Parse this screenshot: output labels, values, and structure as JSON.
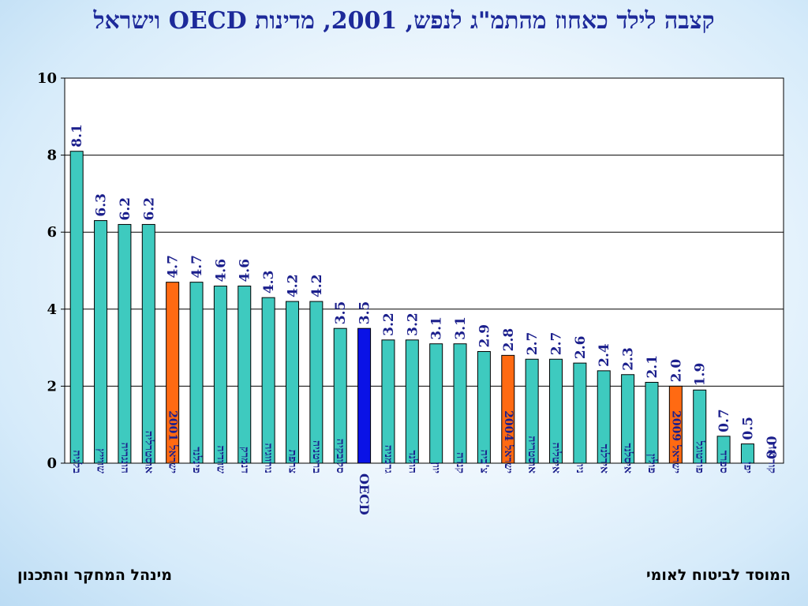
{
  "title": "קצבה לילד כאחוז מהתמ\"ג לנפש, 2001, מדינות OECD וישראל",
  "footer": {
    "left": "מינהל המחקר והתכנון",
    "right": "המוסד לביטוח לאומי"
  },
  "colors": {
    "default_bar": "#3ecabf",
    "israel_bar": "#ff6a12",
    "oecd_bar": "#0a12e6",
    "value_label": "#1b1f8c",
    "category_label": "#1b1f8c",
    "grid": "#000000"
  },
  "chart_data": {
    "type": "bar",
    "categories": [
      "בלגיה",
      "שווייץ",
      "הונגריה",
      "אוסטרליה",
      "ישראל 2001",
      "פינלנד",
      "שוודיה",
      "דנמרק",
      "נורווגיה",
      "צרפת",
      "בריטניה",
      "סלובקיה",
      "OECD",
      "גרמניה",
      "הולנד",
      "יוון",
      "קנדה",
      "צ'כיה",
      "ישראל 2004",
      "אוסטריה",
      "איטליה",
      "ניו",
      "אירלנד",
      "איסלנד",
      "פולין",
      "ישראל 2009",
      "פורטוגל",
      "ספרד",
      "יפן",
      "קוריאה"
    ],
    "values": [
      8.1,
      6.3,
      6.2,
      6.2,
      4.7,
      4.7,
      4.6,
      4.6,
      4.3,
      4.2,
      4.2,
      3.5,
      3.5,
      3.2,
      3.2,
      3.1,
      3.1,
      2.9,
      2.8,
      2.7,
      2.7,
      2.6,
      2.4,
      2.3,
      2.1,
      2.0,
      1.9,
      0.7,
      0.5,
      0.0
    ],
    "value_labels": [
      "8.1",
      "6.3",
      "6.2",
      "6.2",
      "4.7",
      "4.7",
      "4.6",
      "4.6",
      "4.3",
      "4.2",
      "4.2",
      "3.5",
      "3.5",
      "3.2",
      "3.2",
      "3.1",
      "3.1",
      "2.9",
      "2.8",
      "2.7",
      "2.7",
      "2.6",
      "2.4",
      "2.3",
      "2.1",
      "2.0",
      "1.9",
      "0.7",
      "0.5",
      "0.0"
    ],
    "highlights": {
      "ישראל 2001": "israel",
      "ישראל 2004": "israel",
      "ישראל 2009": "israel",
      "OECD": "oecd"
    },
    "yticks": [
      0,
      2,
      4,
      6,
      8,
      10
    ],
    "ylim": [
      0,
      10
    ],
    "grid": true,
    "legend": "none"
  }
}
